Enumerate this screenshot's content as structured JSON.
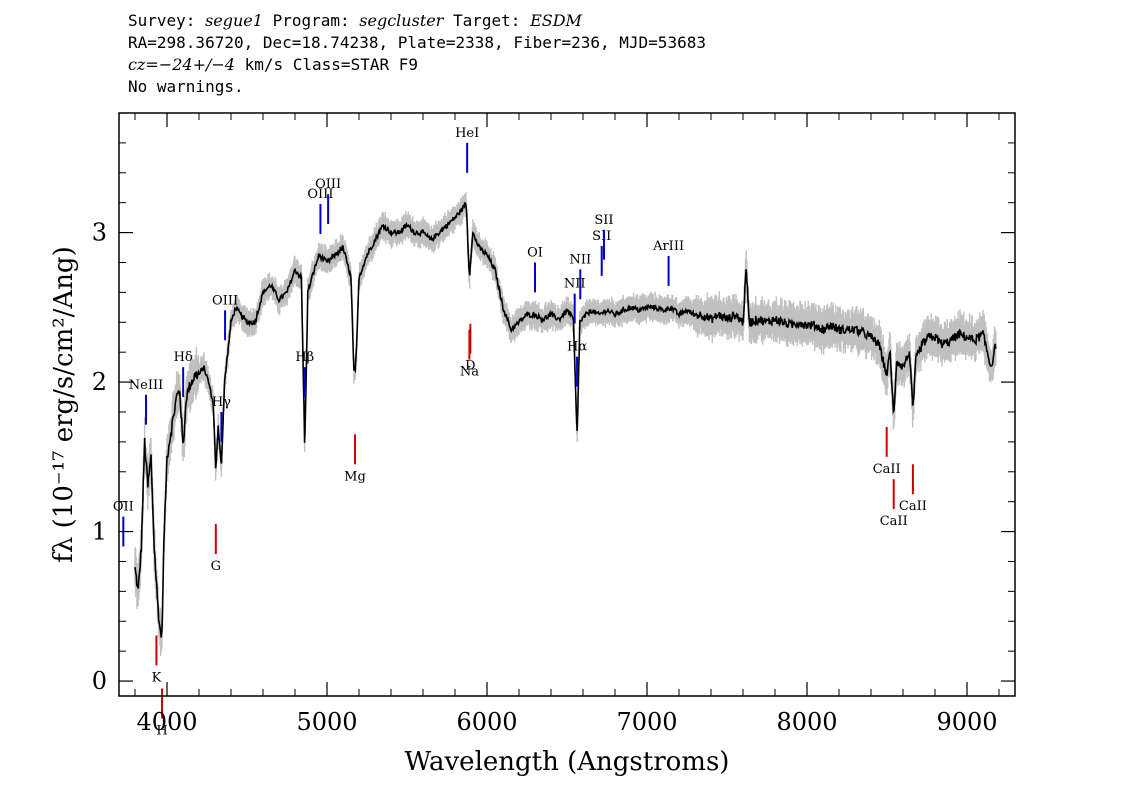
{
  "header": {
    "line1": {
      "survey_label": "Survey:",
      "survey": "segue1",
      "program_label": "Program:",
      "program": "segcluster",
      "target_label": "Target:",
      "target": "ESDM"
    },
    "line2": "RA=298.36720, Dec=18.74238, Plate=2338, Fiber=236, MJD=53683",
    "line3": {
      "cz_label": "cz=",
      "cz_value": "−24+/−4",
      "cz_unit": "km/s",
      "class_text": "Class=STAR F9"
    },
    "line4": "No warnings."
  },
  "chart_data": {
    "type": "line",
    "xlabel": "Wavelength (Angstroms)",
    "ylabel": "fλ (10⁻¹⁷ erg/s/cm²/Ang)",
    "xlim": [
      3700,
      9300
    ],
    "ylim": [
      -0.1,
      3.8
    ],
    "x_ticks": [
      4000,
      5000,
      6000,
      7000,
      8000,
      9000
    ],
    "x_tick_labels": [
      "4000",
      "5000",
      "6000",
      "7000",
      "8000",
      "9000"
    ],
    "y_ticks": [
      0,
      1,
      2,
      3
    ],
    "y_tick_labels": [
      "0",
      "1",
      "2",
      "3"
    ],
    "grid": false,
    "series_colors": {
      "flux": "#000000",
      "error": "#c0c0c0"
    },
    "spectrum": [
      [
        3800,
        0.75
      ],
      [
        3820,
        0.6
      ],
      [
        3840,
        0.9
      ],
      [
        3860,
        1.6
      ],
      [
        3880,
        1.3
      ],
      [
        3900,
        1.5
      ],
      [
        3920,
        0.9
      ],
      [
        3940,
        0.55
      ],
      [
        3955,
        0.35
      ],
      [
        3968,
        0.3
      ],
      [
        3980,
        0.9
      ],
      [
        4000,
        1.5
      ],
      [
        4030,
        1.7
      ],
      [
        4060,
        1.9
      ],
      [
        4080,
        1.95
      ],
      [
        4101,
        1.55
      ],
      [
        4120,
        1.9
      ],
      [
        4150,
        2.0
      ],
      [
        4180,
        2.05
      ],
      [
        4200,
        2.05
      ],
      [
        4230,
        2.1
      ],
      [
        4260,
        2.0
      ],
      [
        4290,
        1.85
      ],
      [
        4305,
        1.4
      ],
      [
        4320,
        1.7
      ],
      [
        4340,
        1.45
      ],
      [
        4360,
        2.0
      ],
      [
        4380,
        2.2
      ],
      [
        4400,
        2.4
      ],
      [
        4430,
        2.5
      ],
      [
        4460,
        2.45
      ],
      [
        4500,
        2.4
      ],
      [
        4550,
        2.4
      ],
      [
        4600,
        2.6
      ],
      [
        4650,
        2.65
      ],
      [
        4700,
        2.55
      ],
      [
        4750,
        2.6
      ],
      [
        4800,
        2.75
      ],
      [
        4840,
        2.7
      ],
      [
        4861,
        1.55
      ],
      [
        4880,
        2.6
      ],
      [
        4920,
        2.75
      ],
      [
        4950,
        2.85
      ],
      [
        5000,
        2.8
      ],
      [
        5050,
        2.85
      ],
      [
        5100,
        2.9
      ],
      [
        5150,
        2.7
      ],
      [
        5167,
        2.1
      ],
      [
        5175,
        2.05
      ],
      [
        5184,
        2.2
      ],
      [
        5200,
        2.7
      ],
      [
        5250,
        2.85
      ],
      [
        5300,
        2.95
      ],
      [
        5350,
        3.05
      ],
      [
        5400,
        3.0
      ],
      [
        5450,
        3.0
      ],
      [
        5500,
        3.05
      ],
      [
        5550,
        3.0
      ],
      [
        5600,
        3.0
      ],
      [
        5650,
        2.95
      ],
      [
        5700,
        3.0
      ],
      [
        5750,
        3.05
      ],
      [
        5800,
        3.1
      ],
      [
        5840,
        3.15
      ],
      [
        5870,
        3.2
      ],
      [
        5890,
        2.7
      ],
      [
        5910,
        3.0
      ],
      [
        5950,
        2.9
      ],
      [
        6000,
        2.85
      ],
      [
        6050,
        2.75
      ],
      [
        6100,
        2.5
      ],
      [
        6150,
        2.35
      ],
      [
        6200,
        2.4
      ],
      [
        6250,
        2.45
      ],
      [
        6300,
        2.45
      ],
      [
        6350,
        2.42
      ],
      [
        6400,
        2.45
      ],
      [
        6450,
        2.42
      ],
      [
        6500,
        2.48
      ],
      [
        6540,
        2.42
      ],
      [
        6563,
        1.62
      ],
      [
        6580,
        2.4
      ],
      [
        6620,
        2.45
      ],
      [
        6650,
        2.48
      ],
      [
        6700,
        2.45
      ],
      [
        6750,
        2.48
      ],
      [
        6800,
        2.45
      ],
      [
        6850,
        2.48
      ],
      [
        6900,
        2.5
      ],
      [
        6950,
        2.48
      ],
      [
        7000,
        2.5
      ],
      [
        7050,
        2.5
      ],
      [
        7100,
        2.48
      ],
      [
        7150,
        2.5
      ],
      [
        7200,
        2.45
      ],
      [
        7250,
        2.48
      ],
      [
        7300,
        2.45
      ],
      [
        7350,
        2.45
      ],
      [
        7400,
        2.42
      ],
      [
        7450,
        2.45
      ],
      [
        7500,
        2.42
      ],
      [
        7550,
        2.45
      ],
      [
        7600,
        2.4
      ],
      [
        7620,
        2.75
      ],
      [
        7640,
        2.4
      ],
      [
        7700,
        2.42
      ],
      [
        7750,
        2.4
      ],
      [
        7800,
        2.42
      ],
      [
        7850,
        2.4
      ],
      [
        7900,
        2.38
      ],
      [
        7950,
        2.4
      ],
      [
        8000,
        2.38
      ],
      [
        8050,
        2.38
      ],
      [
        8100,
        2.35
      ],
      [
        8150,
        2.38
      ],
      [
        8200,
        2.35
      ],
      [
        8250,
        2.35
      ],
      [
        8300,
        2.35
      ],
      [
        8350,
        2.33
      ],
      [
        8400,
        2.3
      ],
      [
        8450,
        2.25
      ],
      [
        8498,
        2.05
      ],
      [
        8520,
        2.2
      ],
      [
        8542,
        1.75
      ],
      [
        8560,
        2.15
      ],
      [
        8600,
        2.1
      ],
      [
        8640,
        2.2
      ],
      [
        8662,
        1.8
      ],
      [
        8680,
        2.15
      ],
      [
        8720,
        2.25
      ],
      [
        8760,
        2.3
      ],
      [
        8800,
        2.3
      ],
      [
        8850,
        2.25
      ],
      [
        8900,
        2.28
      ],
      [
        8950,
        2.32
      ],
      [
        9000,
        2.3
      ],
      [
        9050,
        2.28
      ],
      [
        9100,
        2.32
      ],
      [
        9150,
        2.1
      ],
      [
        9180,
        2.25
      ]
    ],
    "emission_lines": [
      {
        "label": "OII",
        "x": 3727
      },
      {
        "label": "NeIII",
        "x": 3869
      },
      {
        "label": "Hδ",
        "x": 4101
      },
      {
        "label": "Hγ",
        "x": 4340
      },
      {
        "label": "OIII",
        "x": 4363
      },
      {
        "label": "Hβ",
        "x": 4861
      },
      {
        "label": "OIII",
        "x": 4959
      },
      {
        "label": "OIII",
        "x": 5007
      },
      {
        "label": "HeI",
        "x": 5876
      },
      {
        "label": "OI",
        "x": 6300
      },
      {
        "label": "NII",
        "x": 6548
      },
      {
        "label": "Hα",
        "x": 6563
      },
      {
        "label": "NII",
        "x": 6583
      },
      {
        "label": "SII",
        "x": 6717
      },
      {
        "label": "SII",
        "x": 6731
      },
      {
        "label": "ArIII",
        "x": 7135
      }
    ],
    "absorption_lines": [
      {
        "label": "K",
        "x": 3934
      },
      {
        "label": "H",
        "x": 3969
      },
      {
        "label": "G",
        "x": 4305
      },
      {
        "label": "Mg",
        "x": 5175
      },
      {
        "label": "Na",
        "x": 5890
      },
      {
        "label": "D",
        "x": 5896
      },
      {
        "label": "CaII",
        "x": 8498
      },
      {
        "label": "CaII",
        "x": 8542
      },
      {
        "label": "CaII",
        "x": 8662
      }
    ],
    "line_colors": {
      "emission": "#0000c8",
      "absorption": "#d00000",
      "label_leader": "#000000"
    }
  }
}
